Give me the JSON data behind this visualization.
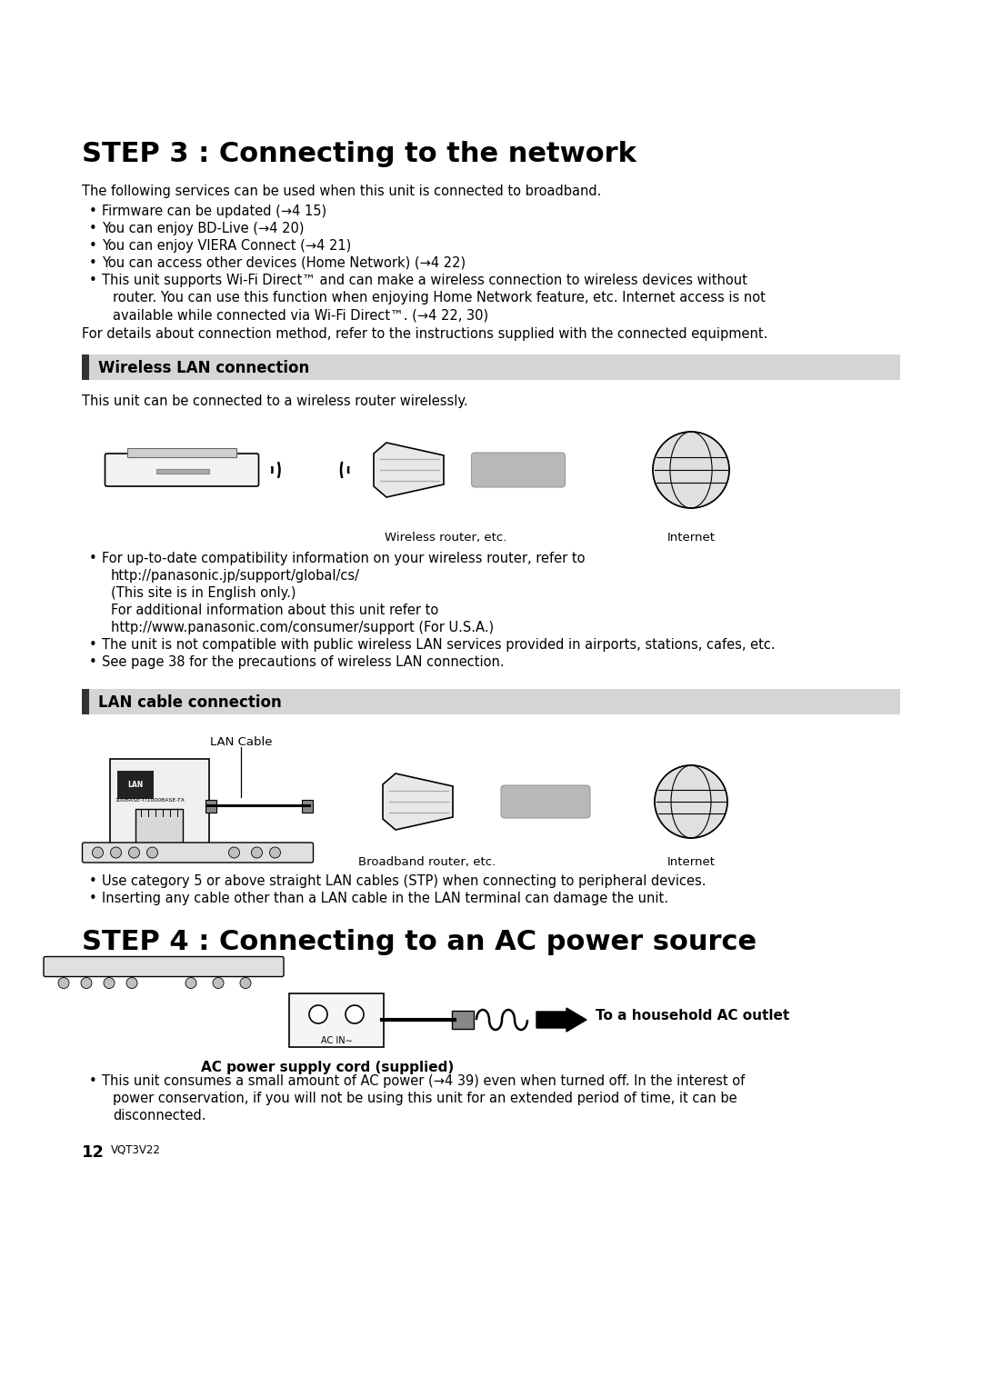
{
  "bg_color": "#ffffff",
  "step3_title": "STEP 3 : Connecting to the network",
  "step4_title": "STEP 4 : Connecting to an AC power source",
  "section1_title": "Wireless LAN connection",
  "section2_title": "LAN cable connection",
  "intro_text": "The following services can be used when this unit is connected to broadband.",
  "bullets_step3": [
    "Firmware can be updated (→4 15)",
    "You can enjoy BD-Live (→4 20)",
    "You can enjoy VIERA Connect (→4 21)",
    "You can access other devices (Home Network) (→4 22)",
    "This unit supports Wi-Fi Direct™ and can make a wireless connection to wireless devices without"
  ],
  "bullet5_cont": [
    "router. You can use this function when enjoying Home Network feature, etc. Internet access is not",
    "available while connected via Wi-Fi Direct™. (→4 22, 30)"
  ],
  "for_details_text": "For details about connection method, refer to the instructions supplied with the connected equipment.",
  "wireless_desc": "This unit can be connected to a wireless router wirelessly.",
  "wireless_bullets": [
    "For up-to-date compatibility information on your wireless router, refer to",
    "http://panasonic.jp/support/global/cs/",
    "(This site is in English only.)",
    "For additional information about this unit refer to",
    "http://www.panasonic.com/consumer/support (For U.S.A.)",
    "The unit is not compatible with public wireless LAN services provided in airports, stations, cafes, etc.",
    "See page 38 for the precautions of wireless LAN connection."
  ],
  "lan_bullets": [
    "Use category 5 or above straight LAN cables (STP) when connecting to peripheral devices.",
    "Inserting any cable other than a LAN cable in the LAN terminal can damage the unit."
  ],
  "ac_bullet_line1": "This unit consumes a small amount of AC power (→4 39) even when turned off. In the interest of",
  "ac_bullet_line2": "power conservation, if you will not be using this unit for an extended period of time, it can be",
  "ac_bullet_line3": "disconnected.",
  "footer_num": "12",
  "footer_code": "VQT3V22",
  "wireless_router_label": "Wireless router, etc.",
  "internet_label": "Internet",
  "lan_cable_label": "LAN Cable",
  "broadband_label": "Broadband router, etc.",
  "ac_outlet_label": "To a household AC outlet",
  "ac_cord_label": "AC power supply cord (supplied)"
}
